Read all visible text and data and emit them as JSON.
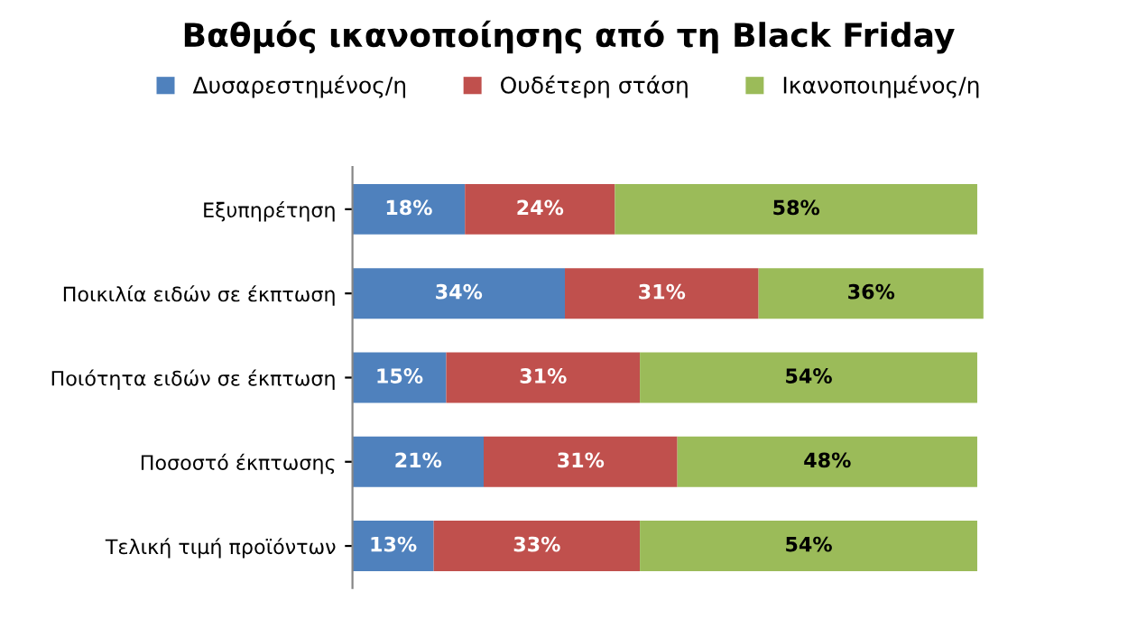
{
  "chart_data": {
    "type": "bar",
    "orientation": "horizontal",
    "stacked": true,
    "title": "Βαθμός ικανοποίησης από τη Black Friday",
    "categories": [
      "Εξυπηρέτηση",
      "Ποικιλία ειδών σε έκπτωση",
      "Ποιότητα ειδών σε έκπτωση",
      "Ποσοστό έκπτωσης",
      "Τελική τιμή προϊόντων"
    ],
    "series": [
      {
        "name": "Δυσαρεστημένος/η",
        "color": "#4f81bd",
        "values": [
          18,
          34,
          15,
          21,
          13
        ],
        "value_labels": [
          "18%",
          "34%",
          "15%",
          "21%",
          "13%"
        ]
      },
      {
        "name": "Ουδέτερη στάση",
        "color": "#c0504d",
        "values": [
          24,
          31,
          31,
          31,
          33
        ],
        "value_labels": [
          "24%",
          "31%",
          "31%",
          "31%",
          "33%"
        ]
      },
      {
        "name": "Ικανοποιημένος/η",
        "color": "#9bbb59",
        "values": [
          58,
          36,
          54,
          48,
          54
        ],
        "value_labels": [
          "58%",
          "36%",
          "54%",
          "48%",
          "54%"
        ]
      }
    ],
    "tick_labels": "y",
    "grid": false,
    "legend": "top"
  }
}
